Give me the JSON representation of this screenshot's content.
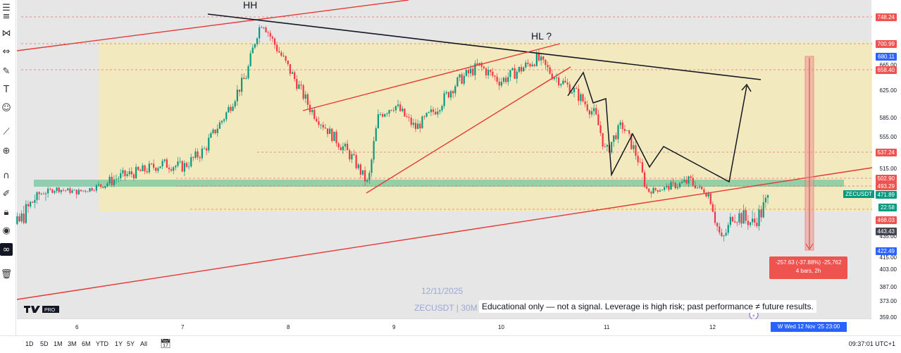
{
  "toolbar": {
    "icons": [
      "menu-icon",
      "horizontal-lines-icon",
      "pattern-icon",
      "fib-icon",
      "brush-icon",
      "text-icon",
      "emoji-icon",
      "ruler-icon",
      "zoom-icon",
      "magnet-icon",
      "lock-drawing-icon",
      "lock-icon",
      "eye-icon",
      "link-icon",
      "trash-icon"
    ]
  },
  "annotations": {
    "hh": "HH",
    "hl": "HL ?"
  },
  "watermark": {
    "date": "12/11/2025",
    "symbol": "ZECUSDT | 30M"
  },
  "disclaimer": "Educational only — not a signal. Leverage is high risk; past performance ≠ future results.",
  "measure": {
    "line1": "-257.63 (-37.88%) -25,762",
    "line2": "4 bars, 2h"
  },
  "crosshair_date": "W   Wed 12 Nov '25   23:00",
  "timeframes": [
    "1D",
    "5D",
    "1M",
    "3M",
    "6M",
    "YTD",
    "1Y",
    "5Y",
    "All"
  ],
  "clock": "09:37:01 UTC+1",
  "symbol_tag": "ZECUSDT",
  "price_tags": [
    {
      "v": "748.24",
      "color": "#ef5350",
      "y": 748.24
    },
    {
      "v": "700.99",
      "color": "#ef5350",
      "y": 700.99
    },
    {
      "v": "680.11",
      "color": "#2962ff",
      "y": 680.11
    },
    {
      "v": "658.40",
      "color": "#ef5350",
      "y": 658.4
    },
    {
      "v": "537.24",
      "color": "#ef5350",
      "y": 537.24
    },
    {
      "v": "502.90",
      "color": "#ef5350",
      "y": 502.9
    },
    {
      "v": "493.29",
      "color": "#ef5350",
      "y": 493.29
    },
    {
      "v": "471.89",
      "color": "#089981",
      "y": 471.89
    },
    {
      "v": "22:58",
      "color": "#089981",
      "y": 463.5
    },
    {
      "v": "468.03",
      "color": "#ef5350",
      "y": 455.5
    },
    {
      "v": "443.43",
      "color": "#434651",
      "y": 443.43
    },
    {
      "v": "422.49",
      "color": "#2962ff",
      "y": 422.49
    }
  ],
  "chart_data": {
    "type": "candlestick",
    "symbol": "ZECUSDT",
    "interval": "30M",
    "y_ticks": [
      745.0,
      665.0,
      625.0,
      585.0,
      555.0,
      515.0,
      455.0,
      435.0,
      415.0,
      403.0,
      387.0,
      373.0,
      359.0
    ],
    "ylim": [
      352,
      775
    ],
    "x_ticks": [
      "6",
      "7",
      "8",
      "9",
      "10",
      "11",
      "12"
    ],
    "price_path": [
      {
        "x": "5.2",
        "p": 430
      },
      {
        "x": "5.4",
        "p": 448
      },
      {
        "x": "5.6",
        "p": 470
      },
      {
        "x": "5.8",
        "p": 486
      },
      {
        "x": "6.0",
        "p": 478
      },
      {
        "x": "6.2",
        "p": 492
      },
      {
        "x": "6.4",
        "p": 505
      },
      {
        "x": "6.6",
        "p": 512
      },
      {
        "x": "6.8",
        "p": 522
      },
      {
        "x": "7.0",
        "p": 518
      },
      {
        "x": "7.2",
        "p": 540
      },
      {
        "x": "7.4",
        "p": 590
      },
      {
        "x": "7.6",
        "p": 650
      },
      {
        "x": "7.7",
        "p": 720
      },
      {
        "x": "7.75",
        "p": 742
      },
      {
        "x": "7.85",
        "p": 705
      },
      {
        "x": "8.0",
        "p": 660
      },
      {
        "x": "8.2",
        "p": 600
      },
      {
        "x": "8.4",
        "p": 560
      },
      {
        "x": "8.6",
        "p": 530
      },
      {
        "x": "8.75",
        "p": 495
      },
      {
        "x": "8.85",
        "p": 590
      },
      {
        "x": "9.0",
        "p": 605
      },
      {
        "x": "9.2",
        "p": 570
      },
      {
        "x": "9.4",
        "p": 600
      },
      {
        "x": "9.6",
        "p": 640
      },
      {
        "x": "9.8",
        "p": 665
      },
      {
        "x": "10.0",
        "p": 640
      },
      {
        "x": "10.2",
        "p": 660
      },
      {
        "x": "10.35",
        "p": 677
      },
      {
        "x": "10.5",
        "p": 650
      },
      {
        "x": "10.7",
        "p": 625
      },
      {
        "x": "10.9",
        "p": 590
      },
      {
        "x": "11.0",
        "p": 535
      },
      {
        "x": "11.15",
        "p": 575
      },
      {
        "x": "11.3",
        "p": 530
      },
      {
        "x": "11.4",
        "p": 480
      },
      {
        "x": "11.6",
        "p": 490
      },
      {
        "x": "11.8",
        "p": 500
      },
      {
        "x": "12.0",
        "p": 470
      },
      {
        "x": "12.1",
        "p": 430
      },
      {
        "x": "12.2",
        "p": 460
      },
      {
        "x": "12.4",
        "p": 452
      },
      {
        "x": "12.55",
        "p": 470
      }
    ],
    "levels": [
      748.24,
      700.99,
      658.4,
      537.24,
      502.9,
      493.29,
      468.03
    ],
    "support_zone": [
      493.29,
      502.9
    ],
    "range_box": [
      468.03,
      700.99
    ]
  }
}
